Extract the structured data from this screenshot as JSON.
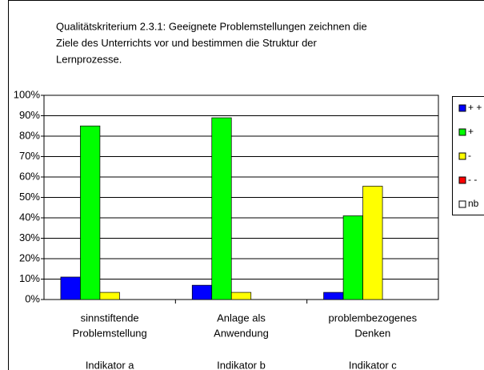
{
  "chart_data": {
    "type": "bar",
    "title": [
      "Qualitätskriterium 2.3.1: Geeignete Problemstellungen zeichnen die",
      "Ziele des Unterrichts vor und bestimmen die Struktur der",
      "Lernprozesse."
    ],
    "categories": [
      [
        "sinnstiftende",
        "Problemstellung"
      ],
      [
        "Anlage als",
        "Anwendung"
      ],
      [
        "problembezogenes",
        "Denken"
      ]
    ],
    "category_groups": [
      "Indikator a",
      "Indikator b",
      "Indikator c"
    ],
    "series": [
      {
        "name": "+ +",
        "color": "#0000ff",
        "values": [
          11,
          7,
          3.5
        ]
      },
      {
        "name": "+",
        "color": "#00ff00",
        "values": [
          85,
          89,
          41
        ]
      },
      {
        "name": "-",
        "color": "#ffff00",
        "values": [
          3.5,
          3.5,
          55.5
        ]
      },
      {
        "name": "- -",
        "color": "#ff0000",
        "values": [
          0,
          0,
          0
        ]
      },
      {
        "name": "nb",
        "color": "#ffffff",
        "values": [
          0,
          0,
          0
        ]
      }
    ],
    "ylim": [
      0,
      100
    ],
    "yticks": [
      {
        "value": 0,
        "label": "0%"
      },
      {
        "value": 10,
        "label": "10%"
      },
      {
        "value": 20,
        "label": "20%"
      },
      {
        "value": 30,
        "label": "30%"
      },
      {
        "value": 40,
        "label": "40%"
      },
      {
        "value": 50,
        "label": "50%"
      },
      {
        "value": 60,
        "label": "60%"
      },
      {
        "value": 70,
        "label": "70%"
      },
      {
        "value": 80,
        "label": "80%"
      },
      {
        "value": 90,
        "label": "90%"
      },
      {
        "value": 100,
        "label": "100%"
      }
    ],
    "grid": true,
    "legend": "right"
  }
}
